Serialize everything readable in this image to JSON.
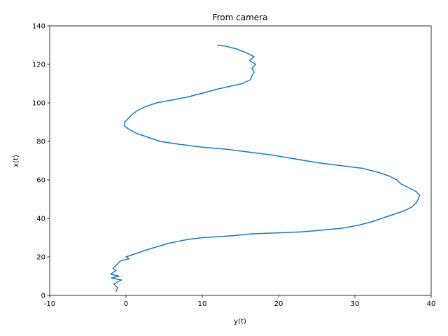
{
  "chart_data": {
    "type": "line",
    "title": "From camera",
    "xlabel": "y(t)",
    "ylabel": "x(t)",
    "xlim": [
      -10,
      40
    ],
    "ylim": [
      0,
      140
    ],
    "xticks": [
      -10,
      0,
      10,
      20,
      30,
      40
    ],
    "yticks": [
      0,
      20,
      40,
      60,
      80,
      100,
      120,
      140
    ],
    "grid": false,
    "series": [
      {
        "color": "#1f77b4",
        "points": [
          [
            -1.3,
            2
          ],
          [
            -1.1,
            4
          ],
          [
            -1.6,
            6
          ],
          [
            -0.6,
            8
          ],
          [
            -1.9,
            9
          ],
          [
            -0.9,
            10
          ],
          [
            -2.0,
            11
          ],
          [
            -1.3,
            13
          ],
          [
            -1.7,
            14
          ],
          [
            -1.2,
            16
          ],
          [
            -0.7,
            18
          ],
          [
            0.4,
            19
          ],
          [
            0.0,
            20
          ],
          [
            1.5,
            22
          ],
          [
            3.0,
            24
          ],
          [
            5.5,
            27
          ],
          [
            8.0,
            29
          ],
          [
            10.0,
            30
          ],
          [
            12.0,
            30.5
          ],
          [
            14.0,
            31
          ],
          [
            16.5,
            32
          ],
          [
            20.0,
            32.5
          ],
          [
            23.0,
            33
          ],
          [
            26.0,
            34
          ],
          [
            28.5,
            35
          ],
          [
            30.5,
            36.5
          ],
          [
            32.0,
            38
          ],
          [
            33.5,
            40
          ],
          [
            35.0,
            42
          ],
          [
            36.5,
            44
          ],
          [
            37.5,
            46
          ],
          [
            38.0,
            48
          ],
          [
            38.3,
            50
          ],
          [
            38.5,
            52
          ],
          [
            38.0,
            54
          ],
          [
            37.0,
            56
          ],
          [
            36.0,
            58
          ],
          [
            35.5,
            60
          ],
          [
            34.5,
            62
          ],
          [
            33.0,
            64
          ],
          [
            31.0,
            66
          ],
          [
            28.0,
            67.5
          ],
          [
            25.0,
            69
          ],
          [
            22.0,
            71
          ],
          [
            19.0,
            73
          ],
          [
            16.0,
            74.5
          ],
          [
            13.0,
            76
          ],
          [
            10.0,
            77
          ],
          [
            7.0,
            78.5
          ],
          [
            4.5,
            80
          ],
          [
            3.0,
            82
          ],
          [
            1.5,
            84
          ],
          [
            0.5,
            86
          ],
          [
            -0.2,
            88
          ],
          [
            -0.2,
            90
          ],
          [
            0.3,
            92
          ],
          [
            0.8,
            94
          ],
          [
            1.5,
            96
          ],
          [
            2.5,
            98
          ],
          [
            4.0,
            100
          ],
          [
            6.0,
            101.5
          ],
          [
            8.0,
            103
          ],
          [
            10.0,
            105
          ],
          [
            11.8,
            107
          ],
          [
            13.5,
            108.5
          ],
          [
            15.2,
            110
          ],
          [
            16.3,
            112
          ],
          [
            16.5,
            114
          ],
          [
            16.8,
            116
          ],
          [
            16.5,
            118
          ],
          [
            17.0,
            120
          ],
          [
            16.2,
            122
          ],
          [
            16.8,
            124
          ],
          [
            15.8,
            126
          ],
          [
            14.5,
            128
          ],
          [
            13.0,
            129.5
          ],
          [
            12.0,
            130
          ]
        ]
      }
    ]
  }
}
